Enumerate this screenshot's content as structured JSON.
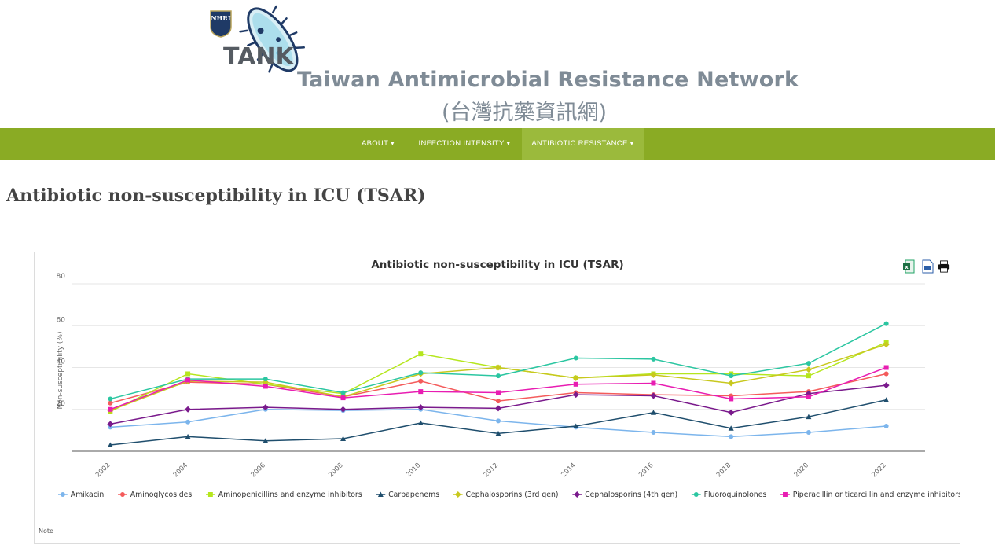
{
  "header": {
    "site_title_en": "Taiwan Antimicrobial Resistance Network",
    "site_title_zh": "(台灣抗藥資訊網)",
    "logo_text": "TANK",
    "nhri_logo_text": "NHRI"
  },
  "nav": {
    "items": [
      {
        "label": "ABOUT ▾"
      },
      {
        "label": "INFECTION INTENSITY ▾"
      },
      {
        "label": "ANTIBIOTIC RESISTANCE ▾"
      }
    ]
  },
  "page": {
    "title": "Antibiotic non-susceptibility in ICU (TSAR)",
    "note_label": "Note"
  },
  "colors": {
    "nav_bg": "#8aab24",
    "grid": "#e6e6e6"
  },
  "chart_data": {
    "type": "line",
    "title": "Antibiotic non-susceptibility in ICU (TSAR)",
    "xlabel": "",
    "ylabel": "Non-susceptibility (%)",
    "ylim": [
      0,
      80
    ],
    "yticks": [
      20,
      40,
      60,
      80
    ],
    "grid": true,
    "legend_position": "bottom",
    "x": [
      "2002",
      "2004",
      "2006",
      "2008",
      "2010",
      "2012",
      "2014",
      "2016",
      "2018",
      "2020",
      "2022"
    ],
    "series": [
      {
        "name": "Amikacin",
        "color": "#7cb5ec",
        "marker": "circle",
        "values": [
          11.5,
          14,
          20,
          19.5,
          20,
          14.5,
          11.5,
          9,
          7,
          9,
          12
        ]
      },
      {
        "name": "Aminoglycosides",
        "color": "#f45b5b",
        "marker": "circle",
        "values": [
          23,
          33,
          32,
          26,
          33.5,
          24,
          28,
          27,
          26.5,
          28.5,
          37
        ]
      },
      {
        "name": "Aminopenicillins and enzyme inhibitors",
        "color": "#b5e61d",
        "marker": "square",
        "values": [
          19,
          37,
          32,
          27.5,
          46.5,
          40,
          35,
          37,
          37,
          36,
          52
        ]
      },
      {
        "name": "Carbapenems",
        "color": "#1f4e6d",
        "marker": "triangle",
        "values": [
          3,
          7,
          5,
          6,
          13.5,
          8.5,
          12,
          18.5,
          11,
          16.5,
          24.5
        ]
      },
      {
        "name": "Cephalosporins (3rd gen)",
        "color": "#c8c81e",
        "marker": "diamond",
        "values": [
          19.5,
          33.5,
          33,
          26,
          37,
          40,
          35,
          36.5,
          32.5,
          39,
          51
        ]
      },
      {
        "name": "Cephalosporins (4th gen)",
        "color": "#7a1a8c",
        "marker": "diamond",
        "values": [
          13,
          20,
          21,
          20,
          21,
          20.5,
          27,
          26.5,
          18.5,
          27.5,
          31.5
        ]
      },
      {
        "name": "Fluoroquinolones",
        "color": "#2bc6a1",
        "marker": "circle",
        "values": [
          25,
          34.5,
          34.5,
          28,
          37.5,
          36,
          44.5,
          44,
          36,
          42,
          61
        ]
      },
      {
        "name": "Piperacillin or ticarcillin and enzyme inhibitors",
        "color": "#e81db2",
        "marker": "square",
        "values": [
          20,
          34,
          31,
          25.5,
          28.5,
          28,
          32,
          32.5,
          25,
          26,
          40
        ]
      }
    ]
  }
}
